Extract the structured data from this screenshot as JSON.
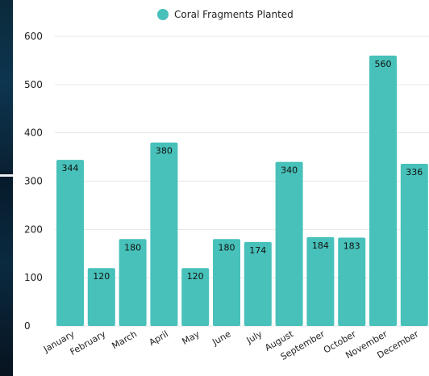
{
  "chart_data": {
    "type": "bar",
    "categories": [
      "January",
      "February",
      "March",
      "April",
      "May",
      "June",
      "July",
      "August",
      "September",
      "October",
      "November",
      "December"
    ],
    "series": [
      {
        "name": "Coral Fragments Planted",
        "values": [
          344,
          120,
          180,
          380,
          120,
          180,
          174,
          340,
          184,
          183,
          560,
          336
        ],
        "color": "#47c1b9"
      }
    ],
    "ylim": [
      0,
      600
    ],
    "yticks": [
      0,
      100,
      200,
      300,
      400,
      500,
      600
    ],
    "grid": true,
    "legend_position": "top-center",
    "data_labels": true,
    "xlabel": "",
    "ylabel": "",
    "title": ""
  }
}
